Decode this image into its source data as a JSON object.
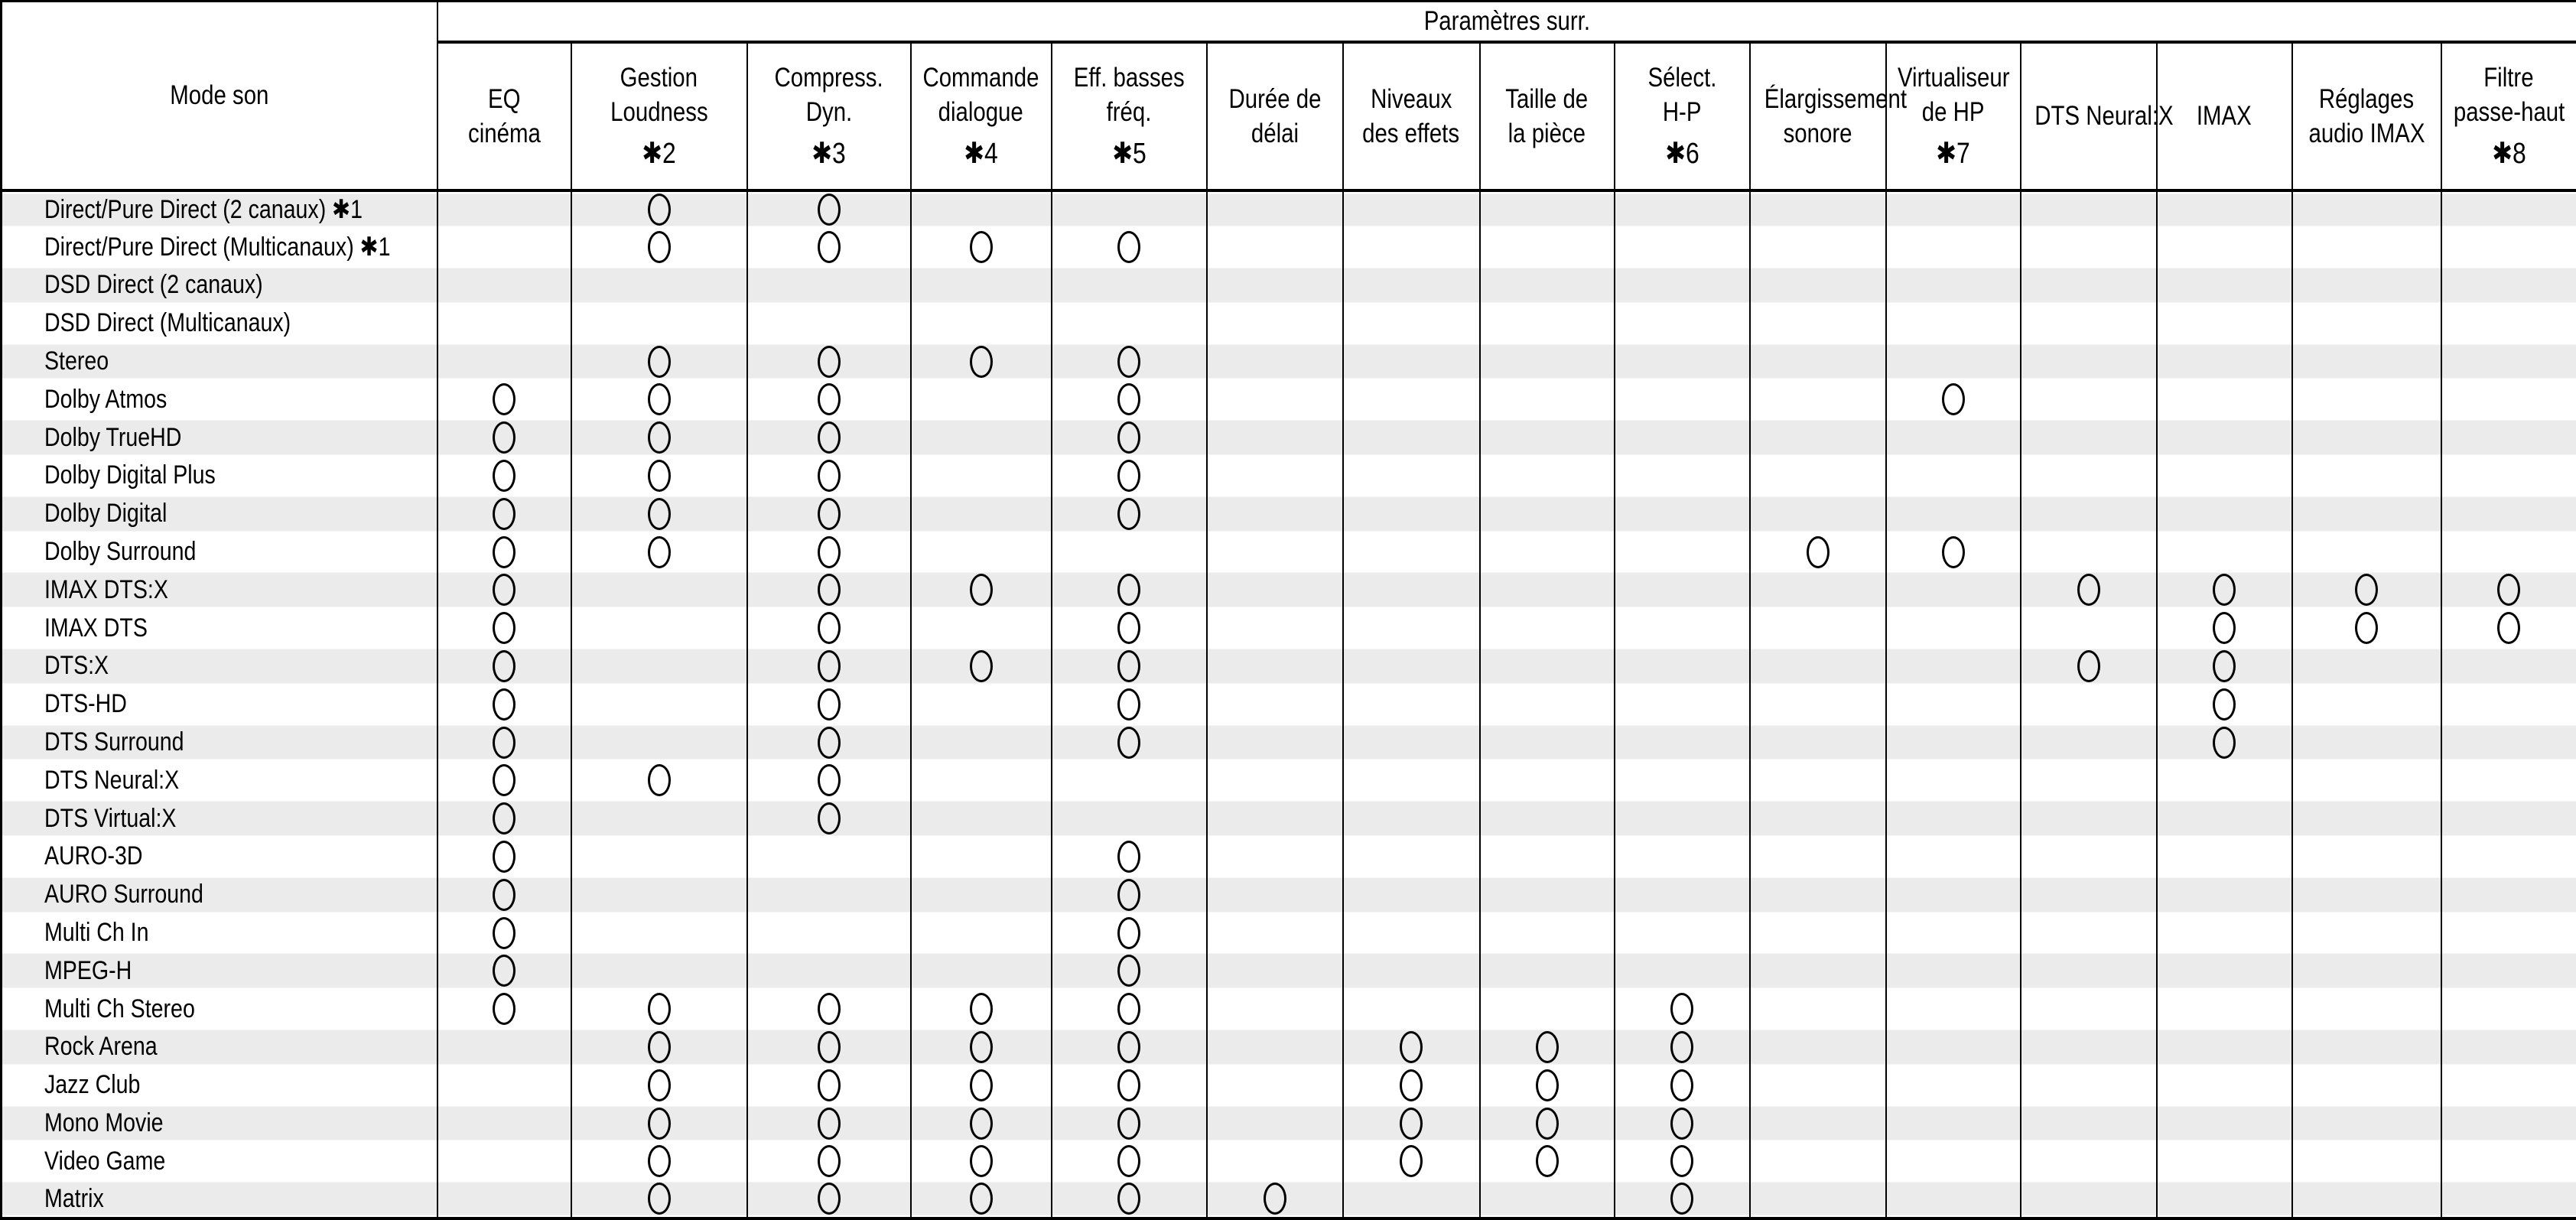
{
  "table": {
    "corner_header": "Mode son",
    "group_header": "Paramètres surr.",
    "available_marker": "○",
    "columns": [
      {
        "id": "eq-cinema",
        "lines": [
          "EQ",
          "cinéma"
        ],
        "note": ""
      },
      {
        "id": "gestion-loudness",
        "lines": [
          "Gestion",
          "Loudness"
        ],
        "note": "✱2"
      },
      {
        "id": "compress-dyn",
        "lines": [
          "Compress.",
          "Dyn."
        ],
        "note": "✱3"
      },
      {
        "id": "commande-dialogue",
        "lines": [
          "Commande",
          "dialogue"
        ],
        "note": "✱4"
      },
      {
        "id": "eff-basses-freq",
        "lines": [
          "Eff. basses",
          "fréq."
        ],
        "note": "✱5"
      },
      {
        "id": "duree-de-delai",
        "lines": [
          "Durée de",
          "délai"
        ],
        "note": ""
      },
      {
        "id": "niveaux-des-effets",
        "lines": [
          "Niveaux",
          "des effets"
        ],
        "note": ""
      },
      {
        "id": "taille-de-la-piece",
        "lines": [
          "Taille de",
          "la pièce"
        ],
        "note": ""
      },
      {
        "id": "select-hp",
        "lines": [
          "Sélect.",
          "H-P"
        ],
        "note": "✱6"
      },
      {
        "id": "elargissement-sonore",
        "lines": [
          "Élargissement",
          "sonore"
        ],
        "note": ""
      },
      {
        "id": "virtualiseur-de-hp",
        "lines": [
          "Virtualiseur",
          "de HP"
        ],
        "note": "✱7"
      },
      {
        "id": "dts-neural-x",
        "lines": [
          "DTS Neural:X"
        ],
        "note": ""
      },
      {
        "id": "imax",
        "lines": [
          "IMAX"
        ],
        "note": ""
      },
      {
        "id": "reglages-audio-imax",
        "lines": [
          "Réglages",
          "audio IMAX"
        ],
        "note": ""
      },
      {
        "id": "filtre-passe-haut",
        "lines": [
          "Filtre",
          "passe-haut"
        ],
        "note": "✱8"
      }
    ],
    "rows": [
      {
        "label": "Direct/Pure Direct (2 canaux)",
        "note": "✱1",
        "cells": [
          0,
          1,
          1,
          0,
          0,
          0,
          0,
          0,
          0,
          0,
          0,
          0,
          0,
          0,
          0
        ]
      },
      {
        "label": "Direct/Pure Direct (Multicanaux)",
        "note": "✱1",
        "cells": [
          0,
          1,
          1,
          1,
          1,
          0,
          0,
          0,
          0,
          0,
          0,
          0,
          0,
          0,
          0
        ]
      },
      {
        "label": "DSD Direct (2 canaux)",
        "note": "",
        "cells": [
          0,
          0,
          0,
          0,
          0,
          0,
          0,
          0,
          0,
          0,
          0,
          0,
          0,
          0,
          0
        ]
      },
      {
        "label": "DSD Direct (Multicanaux)",
        "note": "",
        "cells": [
          0,
          0,
          0,
          0,
          0,
          0,
          0,
          0,
          0,
          0,
          0,
          0,
          0,
          0,
          0
        ]
      },
      {
        "label": "Stereo",
        "note": "",
        "cells": [
          0,
          1,
          1,
          1,
          1,
          0,
          0,
          0,
          0,
          0,
          0,
          0,
          0,
          0,
          0
        ]
      },
      {
        "label": "Dolby Atmos",
        "note": "",
        "cells": [
          1,
          1,
          1,
          0,
          1,
          0,
          0,
          0,
          0,
          0,
          1,
          0,
          0,
          0,
          0
        ]
      },
      {
        "label": "Dolby TrueHD",
        "note": "",
        "cells": [
          1,
          1,
          1,
          0,
          1,
          0,
          0,
          0,
          0,
          0,
          0,
          0,
          0,
          0,
          0
        ]
      },
      {
        "label": "Dolby Digital Plus",
        "note": "",
        "cells": [
          1,
          1,
          1,
          0,
          1,
          0,
          0,
          0,
          0,
          0,
          0,
          0,
          0,
          0,
          0
        ]
      },
      {
        "label": "Dolby Digital",
        "note": "",
        "cells": [
          1,
          1,
          1,
          0,
          1,
          0,
          0,
          0,
          0,
          0,
          0,
          0,
          0,
          0,
          0
        ]
      },
      {
        "label": "Dolby Surround",
        "note": "",
        "cells": [
          1,
          1,
          1,
          0,
          0,
          0,
          0,
          0,
          0,
          1,
          1,
          0,
          0,
          0,
          0
        ]
      },
      {
        "label": "IMAX DTS:X",
        "note": "",
        "cells": [
          1,
          0,
          1,
          1,
          1,
          0,
          0,
          0,
          0,
          0,
          0,
          1,
          1,
          1,
          1
        ]
      },
      {
        "label": "IMAX DTS",
        "note": "",
        "cells": [
          1,
          0,
          1,
          0,
          1,
          0,
          0,
          0,
          0,
          0,
          0,
          0,
          1,
          1,
          1
        ]
      },
      {
        "label": "DTS:X",
        "note": "",
        "cells": [
          1,
          0,
          1,
          1,
          1,
          0,
          0,
          0,
          0,
          0,
          0,
          1,
          1,
          0,
          0
        ]
      },
      {
        "label": "DTS-HD",
        "note": "",
        "cells": [
          1,
          0,
          1,
          0,
          1,
          0,
          0,
          0,
          0,
          0,
          0,
          0,
          1,
          0,
          0
        ]
      },
      {
        "label": "DTS Surround",
        "note": "",
        "cells": [
          1,
          0,
          1,
          0,
          1,
          0,
          0,
          0,
          0,
          0,
          0,
          0,
          1,
          0,
          0
        ]
      },
      {
        "label": "DTS Neural:X",
        "note": "",
        "cells": [
          1,
          1,
          1,
          0,
          0,
          0,
          0,
          0,
          0,
          0,
          0,
          0,
          0,
          0,
          0
        ]
      },
      {
        "label": "DTS Virtual:X",
        "note": "",
        "cells": [
          1,
          0,
          1,
          0,
          0,
          0,
          0,
          0,
          0,
          0,
          0,
          0,
          0,
          0,
          0
        ]
      },
      {
        "label": "AURO-3D",
        "note": "",
        "cells": [
          1,
          0,
          0,
          0,
          1,
          0,
          0,
          0,
          0,
          0,
          0,
          0,
          0,
          0,
          0
        ]
      },
      {
        "label": "AURO Surround",
        "note": "",
        "cells": [
          1,
          0,
          0,
          0,
          1,
          0,
          0,
          0,
          0,
          0,
          0,
          0,
          0,
          0,
          0
        ]
      },
      {
        "label": "Multi Ch In",
        "note": "",
        "cells": [
          1,
          0,
          0,
          0,
          1,
          0,
          0,
          0,
          0,
          0,
          0,
          0,
          0,
          0,
          0
        ]
      },
      {
        "label": "MPEG-H",
        "note": "",
        "cells": [
          1,
          0,
          0,
          0,
          1,
          0,
          0,
          0,
          0,
          0,
          0,
          0,
          0,
          0,
          0
        ]
      },
      {
        "label": "Multi Ch Stereo",
        "note": "",
        "cells": [
          1,
          1,
          1,
          1,
          1,
          0,
          0,
          0,
          1,
          0,
          0,
          0,
          0,
          0,
          0
        ]
      },
      {
        "label": "Rock Arena",
        "note": "",
        "cells": [
          0,
          1,
          1,
          1,
          1,
          0,
          1,
          1,
          1,
          0,
          0,
          0,
          0,
          0,
          0
        ]
      },
      {
        "label": "Jazz Club",
        "note": "",
        "cells": [
          0,
          1,
          1,
          1,
          1,
          0,
          1,
          1,
          1,
          0,
          0,
          0,
          0,
          0,
          0
        ]
      },
      {
        "label": "Mono Movie",
        "note": "",
        "cells": [
          0,
          1,
          1,
          1,
          1,
          0,
          1,
          1,
          1,
          0,
          0,
          0,
          0,
          0,
          0
        ]
      },
      {
        "label": "Video Game",
        "note": "",
        "cells": [
          0,
          1,
          1,
          1,
          1,
          0,
          1,
          1,
          1,
          0,
          0,
          0,
          0,
          0,
          0
        ]
      },
      {
        "label": "Matrix",
        "note": "",
        "cells": [
          0,
          1,
          1,
          1,
          1,
          1,
          0,
          0,
          1,
          0,
          0,
          0,
          0,
          0,
          0
        ]
      }
    ]
  }
}
